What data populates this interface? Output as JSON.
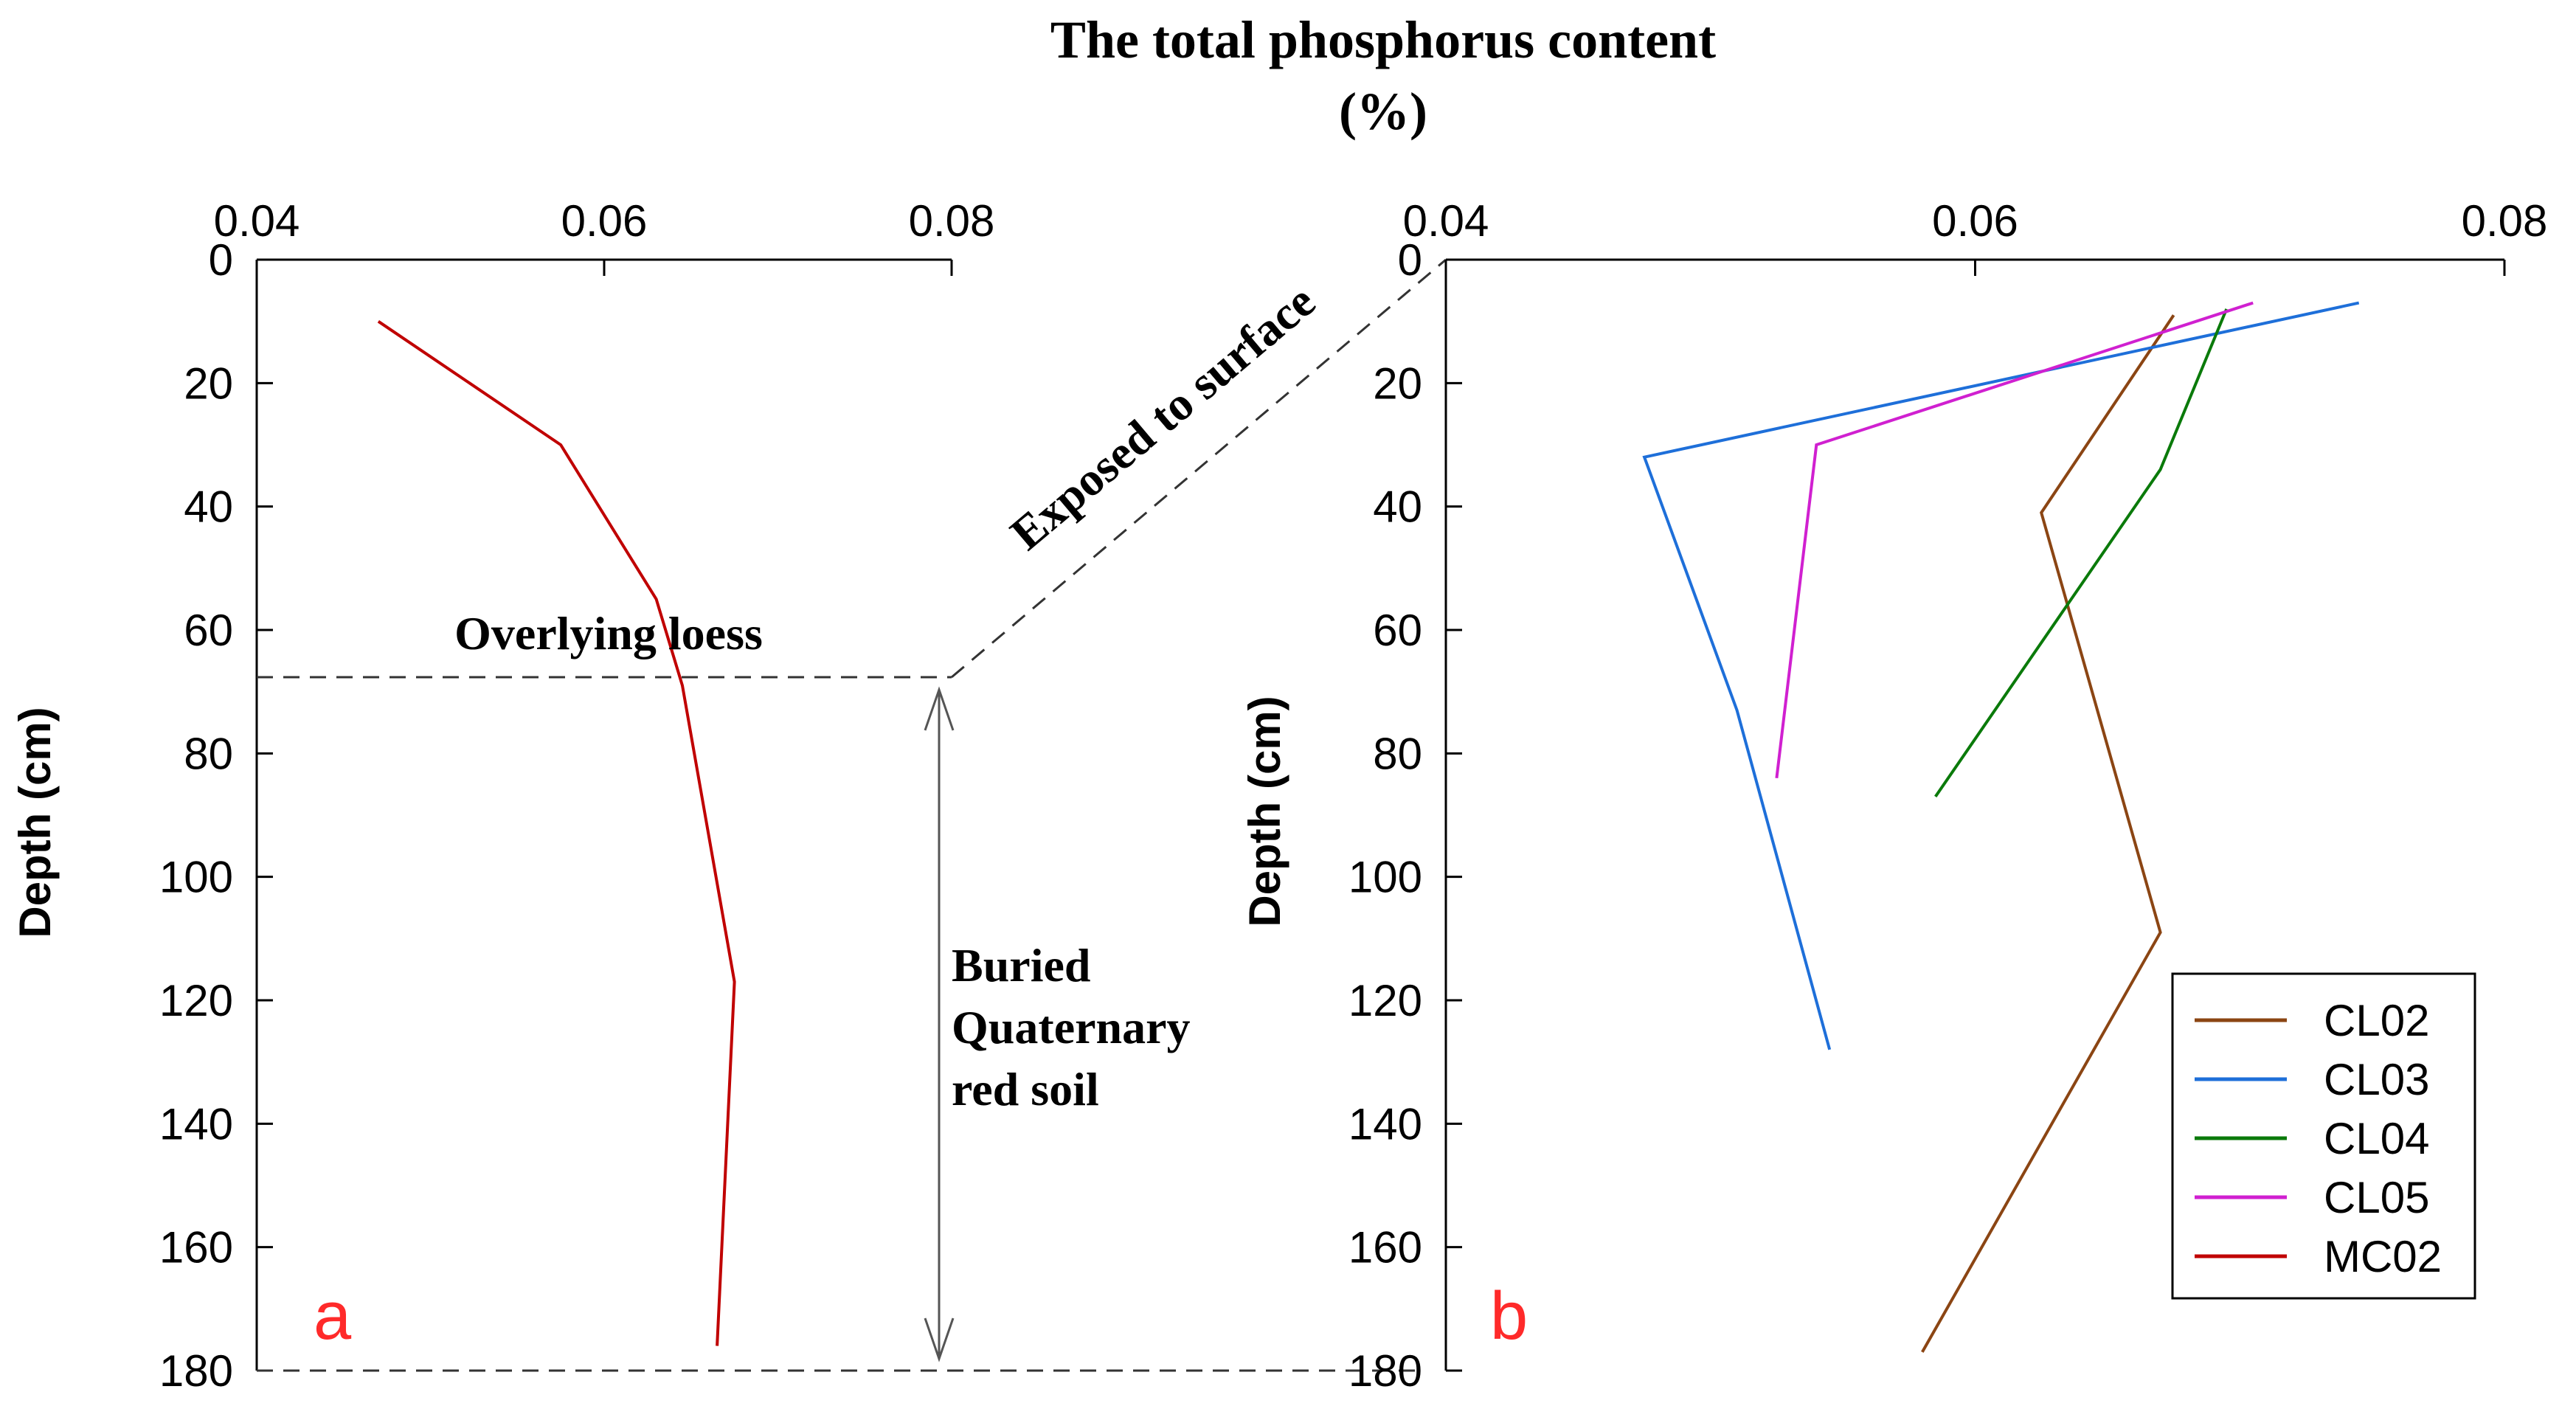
{
  "figure": {
    "title_line1": "The total phosphorus content",
    "title_line2": "(%)"
  },
  "chart_data": [
    {
      "type": "line",
      "panel_label": "a",
      "xlabel": "The total phosphorus content (%)",
      "ylabel": "Depth (cm)",
      "xlim": [
        0.04,
        0.08
      ],
      "ylim": [
        0,
        180
      ],
      "y_inverted": true,
      "x_axis_position": "top",
      "xticks": [
        0.04,
        0.06,
        0.08
      ],
      "xtick_labels": [
        "0.04",
        "0.06",
        "0.08"
      ],
      "yticks": [
        0,
        20,
        40,
        60,
        80,
        100,
        120,
        140,
        160,
        180
      ],
      "ytick_labels": [
        "0",
        "20",
        "40",
        "60",
        "80",
        "100",
        "120",
        "140",
        "160",
        "180"
      ],
      "series": [
        {
          "name": "MC02",
          "color": "#c00000",
          "points": [
            [
              0.047,
              10
            ],
            [
              0.0575,
              30
            ],
            [
              0.063,
              55
            ],
            [
              0.0645,
              69
            ],
            [
              0.0675,
              117
            ],
            [
              0.0665,
              176
            ]
          ]
        }
      ],
      "annotations": {
        "overlying": "Overlying loess",
        "buried_line1": "Buried",
        "buried_line2": "Quaternary",
        "buried_line3": "red soil",
        "exposed": "Exposed to surface"
      }
    },
    {
      "type": "line",
      "panel_label": "b",
      "xlabel": "The total phosphorus content (%)",
      "ylabel": "Depth (cm)",
      "xlim": [
        0.04,
        0.08
      ],
      "ylim": [
        0,
        180
      ],
      "y_inverted": true,
      "x_axis_position": "top",
      "xticks": [
        0.04,
        0.06,
        0.08
      ],
      "xtick_labels": [
        "0.04",
        "0.06",
        "0.08"
      ],
      "yticks": [
        0,
        20,
        40,
        60,
        80,
        100,
        120,
        140,
        160,
        180
      ],
      "ytick_labels": [
        "0",
        "20",
        "40",
        "60",
        "80",
        "100",
        "120",
        "140",
        "160",
        "180"
      ],
      "legend_position": "bottom-right",
      "series": [
        {
          "name": "CL02",
          "color": "#8b4513",
          "points": [
            [
              0.0675,
              9
            ],
            [
              0.0625,
              41
            ],
            [
              0.067,
              109
            ],
            [
              0.058,
              177
            ]
          ]
        },
        {
          "name": "CL03",
          "color": "#1e6fd9",
          "points": [
            [
              0.0745,
              7
            ],
            [
              0.0475,
              32
            ],
            [
              0.051,
              73
            ],
            [
              0.0545,
              128
            ]
          ]
        },
        {
          "name": "CL04",
          "color": "#0a7a0a",
          "points": [
            [
              0.0695,
              8
            ],
            [
              0.067,
              34
            ],
            [
              0.0585,
              87
            ]
          ]
        },
        {
          "name": "CL05",
          "color": "#d020d0",
          "points": [
            [
              0.0705,
              7
            ],
            [
              0.054,
              30
            ],
            [
              0.0525,
              84
            ]
          ]
        }
      ]
    }
  ],
  "legend": {
    "entries": [
      {
        "name": "CL02",
        "color": "#8b4513"
      },
      {
        "name": "CL03",
        "color": "#1e6fd9"
      },
      {
        "name": "CL04",
        "color": "#0a7a0a"
      },
      {
        "name": "CL05",
        "color": "#d020d0"
      },
      {
        "name": "MC02",
        "color": "#c00000"
      }
    ]
  },
  "colors": {
    "axis": "#000000",
    "panel_label": "#ff2a2a",
    "dashed": "#333333"
  }
}
